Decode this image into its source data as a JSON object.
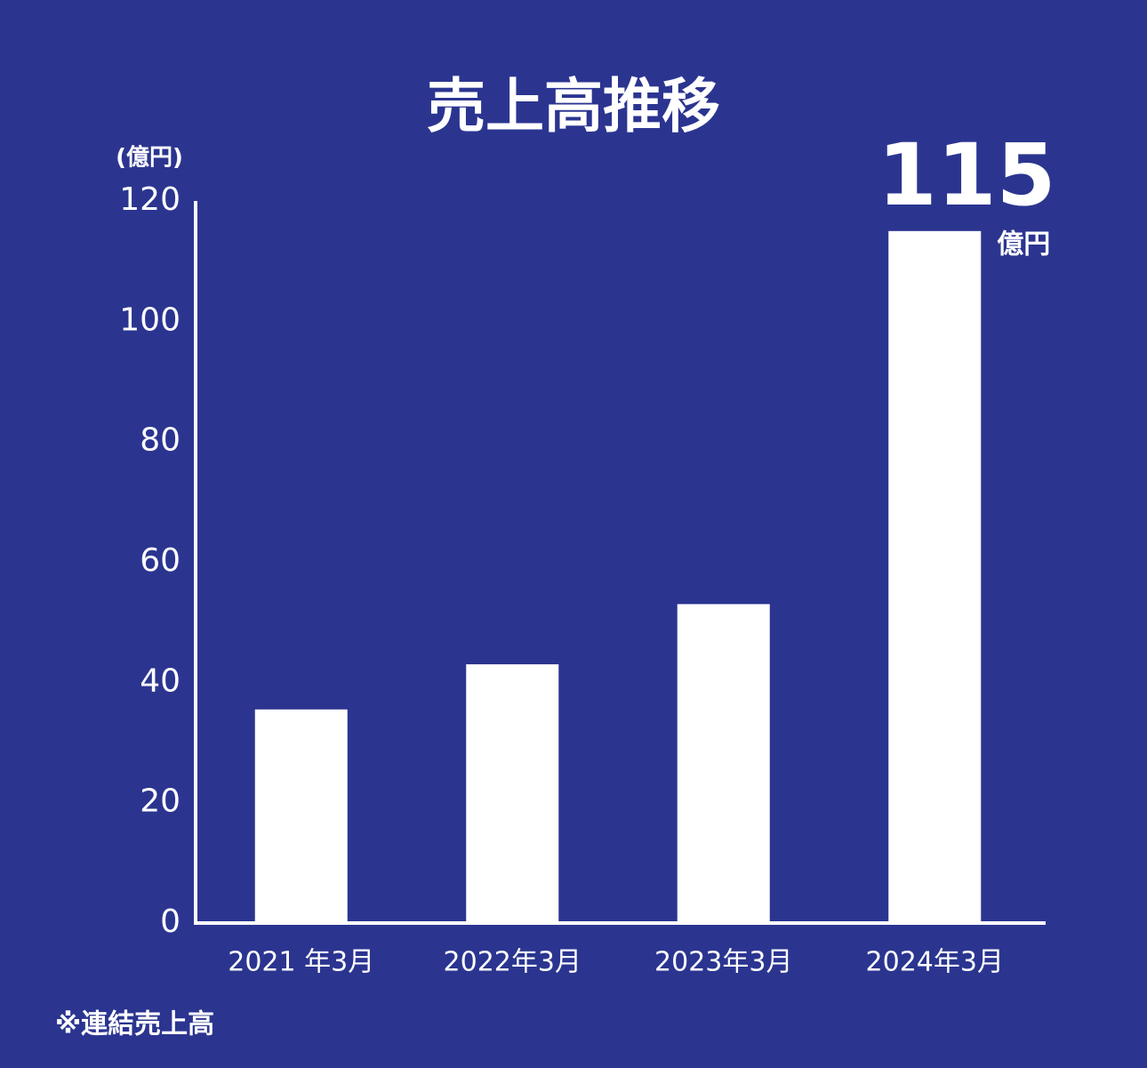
{
  "chart_data": {
    "type": "bar",
    "title": "売上高推移",
    "y_label": "(億円)",
    "categories": [
      "2021 年3月",
      "2022年3月",
      "2023年3月",
      "2024年3月"
    ],
    "values": [
      35.5,
      43,
      53,
      115
    ],
    "value_labels": [
      null,
      null,
      null,
      "115"
    ],
    "value_unit": "億円",
    "color": "#ffffff",
    "ylim": [
      0,
      120
    ],
    "yticks": [
      0,
      20,
      40,
      60,
      80,
      100,
      120
    ],
    "grid": false,
    "footnote": "※連結売上高"
  }
}
